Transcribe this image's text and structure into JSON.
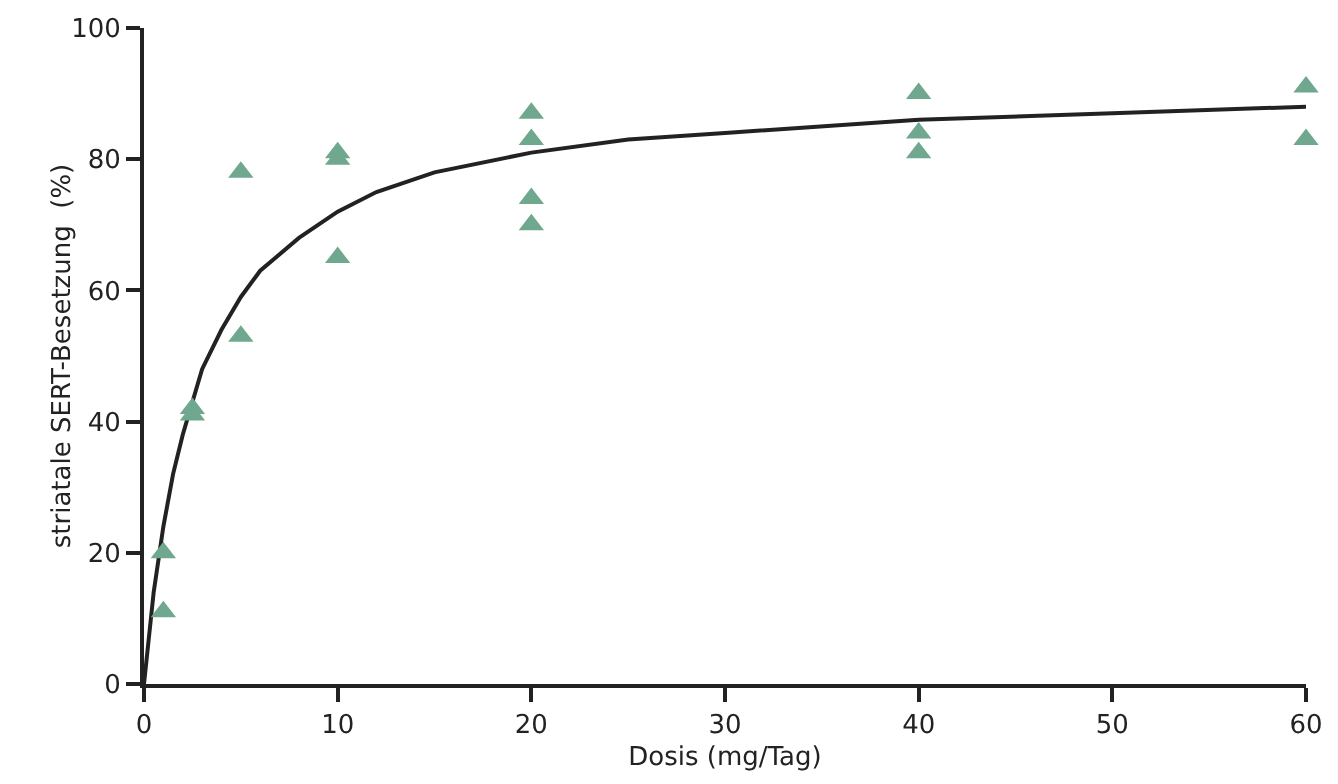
{
  "chart_data": {
    "type": "scatter",
    "xlabel": "Dosis (mg/Tag)",
    "ylabel": "striatale SERT-Besetzung  (%)",
    "xlim": [
      0,
      60
    ],
    "xticks": [
      0,
      10,
      20,
      30,
      40,
      50,
      60
    ],
    "ylim": [
      0,
      100
    ],
    "yticks": [
      0,
      20,
      40,
      60,
      80,
      100
    ],
    "grid": false,
    "marker": "triangle",
    "series": [
      {
        "type": "scatter",
        "color": "#6fa88e",
        "x": [
          1,
          1,
          2.5,
          2.5,
          5,
          5,
          10,
          10,
          10,
          20,
          20,
          20,
          20,
          40,
          40,
          40,
          60,
          60
        ],
        "values": [
          20,
          11,
          42,
          41,
          78,
          53,
          81,
          80,
          65,
          87,
          83,
          74,
          70,
          90,
          84,
          81,
          91,
          83
        ]
      },
      {
        "type": "line",
        "color": "#222222",
        "marker": "none",
        "line_style": "solid",
        "x": [
          0,
          0.5,
          1,
          1.5,
          2,
          3,
          4,
          5,
          6,
          8,
          10,
          12,
          15,
          20,
          25,
          30,
          40,
          50,
          60
        ],
        "values": [
          0,
          14,
          24,
          32,
          38,
          48,
          54,
          59,
          63,
          68,
          72,
          75,
          78,
          81,
          83,
          84,
          86,
          87,
          88
        ]
      }
    ]
  }
}
